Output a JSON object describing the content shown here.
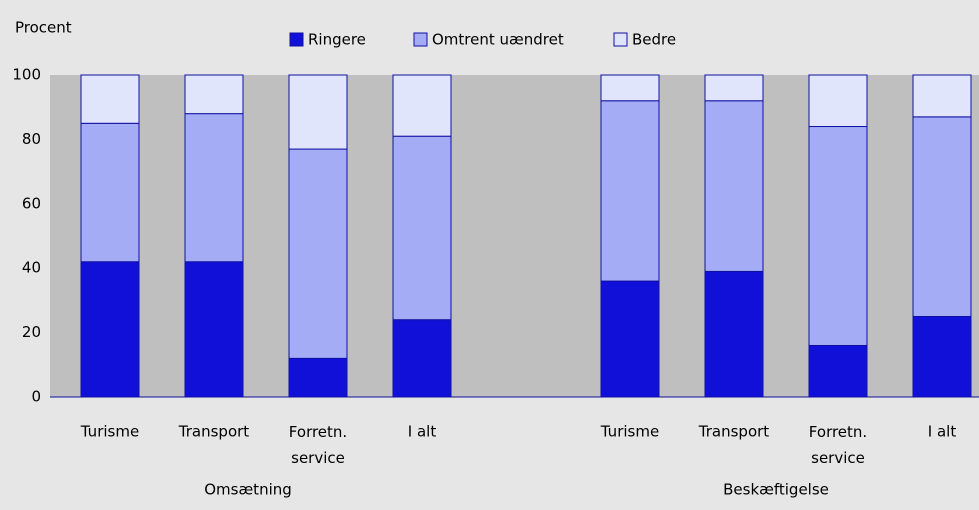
{
  "chart_data": {
    "type": "stacked_bar",
    "y_label": "Procent",
    "categories": [
      "Turisme",
      "Transport",
      "Forretn. service",
      "I alt",
      null,
      "Turisme",
      "Transport",
      "Forretn. service",
      "I alt"
    ],
    "group_labels": [
      "Omsætning",
      "Beskæftigelse"
    ],
    "series": [
      {
        "name": "Ringere",
        "color": "#1010d8",
        "values": [
          42,
          42,
          12,
          24,
          null,
          36,
          39,
          16,
          25
        ]
      },
      {
        "name": "Omtrent uændret",
        "color": "#a3acf5",
        "values": [
          43,
          46,
          65,
          57,
          null,
          56,
          53,
          68,
          62
        ]
      },
      {
        "name": "Bedre",
        "color": "#e1e5fc",
        "values": [
          15,
          12,
          23,
          19,
          null,
          8,
          8,
          16,
          13
        ]
      }
    ],
    "ylim": [
      0,
      100
    ],
    "yticks": [
      0,
      20,
      40,
      60,
      80,
      100
    ],
    "grid": false
  }
}
